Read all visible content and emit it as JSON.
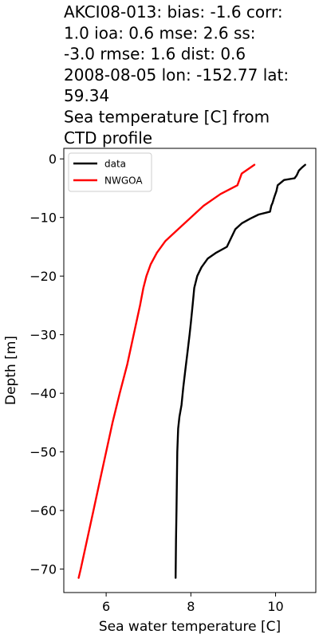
{
  "chart_data": {
    "type": "line",
    "title_lines": [
      "AKCI08-013: bias: -1.6  corr:",
      "1.0  ioa: 0.6  mse: 2.6  ss:",
      "-3.0  rmse: 1.6  dist: 0.6",
      "2008-08-05 lon: -152.77 lat:",
      "59.34",
      "Sea temperature [C] from",
      "CTD profile"
    ],
    "xlabel": "Sea water temperature [C]",
    "ylabel": "Depth [m]",
    "xlim": [
      5.0,
      10.95
    ],
    "ylim": [
      -74,
      1.8
    ],
    "xticks": [
      6,
      8,
      10
    ],
    "yticks": [
      0,
      -10,
      -20,
      -30,
      -40,
      -50,
      -60,
      -70
    ],
    "xtick_labels": [
      "6",
      "8",
      "10"
    ],
    "ytick_labels": [
      "0",
      "−10",
      "−20",
      "−30",
      "−40",
      "−50",
      "−60",
      "−70"
    ],
    "legend": {
      "position": "top-left",
      "entries": [
        "data",
        "NWGOA"
      ]
    },
    "series": [
      {
        "name": "data",
        "color": "#000000",
        "points": [
          [
            10.7,
            -1.0
          ],
          [
            10.62,
            -1.5
          ],
          [
            10.55,
            -2.0
          ],
          [
            10.5,
            -2.8
          ],
          [
            10.45,
            -3.3
          ],
          [
            10.2,
            -3.6
          ],
          [
            10.05,
            -4.5
          ],
          [
            10.02,
            -5.5
          ],
          [
            9.97,
            -6.5
          ],
          [
            9.93,
            -7.5
          ],
          [
            9.9,
            -8.0
          ],
          [
            9.87,
            -9.0
          ],
          [
            9.6,
            -9.5
          ],
          [
            9.4,
            -10.2
          ],
          [
            9.2,
            -11.0
          ],
          [
            9.05,
            -12.0
          ],
          [
            8.95,
            -13.5
          ],
          [
            8.85,
            -15.0
          ],
          [
            8.6,
            -16.0
          ],
          [
            8.4,
            -17.0
          ],
          [
            8.25,
            -18.5
          ],
          [
            8.15,
            -20.0
          ],
          [
            8.08,
            -22.0
          ],
          [
            8.04,
            -25.0
          ],
          [
            8.0,
            -28.0
          ],
          [
            7.97,
            -30.0
          ],
          [
            7.92,
            -33.0
          ],
          [
            7.87,
            -36.0
          ],
          [
            7.82,
            -39.0
          ],
          [
            7.78,
            -42.0
          ],
          [
            7.73,
            -44.0
          ],
          [
            7.7,
            -46.0
          ],
          [
            7.68,
            -50.0
          ],
          [
            7.67,
            -55.0
          ],
          [
            7.66,
            -60.0
          ],
          [
            7.65,
            -65.0
          ],
          [
            7.64,
            -71.5
          ]
        ]
      },
      {
        "name": "NWGOA",
        "color": "#ff0000",
        "points": [
          [
            9.5,
            -1.0
          ],
          [
            9.2,
            -2.5
          ],
          [
            9.1,
            -4.5
          ],
          [
            8.7,
            -6.0
          ],
          [
            8.3,
            -8.0
          ],
          [
            8.0,
            -10.0
          ],
          [
            7.7,
            -12.0
          ],
          [
            7.4,
            -14.0
          ],
          [
            7.2,
            -16.0
          ],
          [
            7.05,
            -18.0
          ],
          [
            6.95,
            -20.0
          ],
          [
            6.88,
            -22.0
          ],
          [
            6.8,
            -25.0
          ],
          [
            6.65,
            -30.0
          ],
          [
            6.5,
            -35.0
          ],
          [
            6.32,
            -40.0
          ],
          [
            6.15,
            -45.0
          ],
          [
            6.0,
            -50.0
          ],
          [
            5.85,
            -55.0
          ],
          [
            5.7,
            -60.0
          ],
          [
            5.55,
            -65.0
          ],
          [
            5.4,
            -70.0
          ],
          [
            5.35,
            -71.5
          ]
        ]
      }
    ]
  }
}
